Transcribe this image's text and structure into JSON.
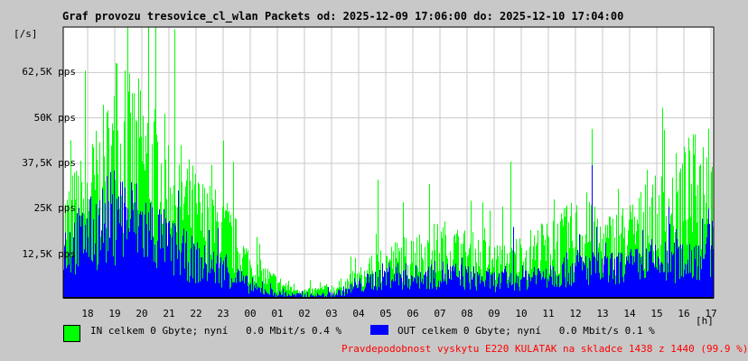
{
  "chart_data": {
    "type": "area",
    "title": "Graf provozu tresovice_cl_wlan Packets od: 2025-12-09 17:06:00 do: 2025-12-10 17:04:00",
    "ylabel": "[/s]",
    "xlabel": "[h]",
    "ylim": [
      0,
      75000
    ],
    "yticks": [
      {
        "v": 12500,
        "label": "12,5K pps"
      },
      {
        "v": 25000,
        "label": "25K pps"
      },
      {
        "v": 37500,
        "label": "37,5K pps"
      },
      {
        "v": 50000,
        "label": "50K pps"
      },
      {
        "v": 62500,
        "label": "62,5K pps"
      }
    ],
    "xticks": [
      "18",
      "19",
      "20",
      "21",
      "22",
      "23",
      "00",
      "01",
      "02",
      "03",
      "04",
      "05",
      "06",
      "07",
      "08",
      "09",
      "10",
      "11",
      "12",
      "13",
      "14",
      "15",
      "16",
      "17"
    ],
    "grid": true,
    "x_hours_from_start": [
      0,
      1,
      2,
      3,
      4,
      5,
      6,
      7,
      8,
      9,
      10,
      11,
      12,
      13,
      14,
      15,
      16,
      17,
      18,
      19,
      20,
      21,
      22,
      23,
      24
    ],
    "series": [
      {
        "name": "IN",
        "color": "#00ff00",
        "values": [
          20000,
          28000,
          40000,
          38000,
          30000,
          22000,
          18000,
          8000,
          4000,
          2000,
          3000,
          6000,
          10000,
          12000,
          14000,
          12000,
          10000,
          12000,
          14000,
          18000,
          15000,
          18000,
          22000,
          28000,
          32000
        ],
        "spikes": [
          {
            "h": 1.95,
            "v": 65000
          },
          {
            "h": 11.6,
            "v": 33000
          },
          {
            "h": 16.5,
            "v": 38000
          },
          {
            "h": 19.5,
            "v": 47000
          },
          {
            "h": 23.8,
            "v": 47000
          }
        ]
      },
      {
        "name": "OUT",
        "color": "#0000ff",
        "values": [
          14000,
          18000,
          24000,
          20000,
          14000,
          10000,
          8000,
          3000,
          1500,
          1000,
          1500,
          4000,
          7000,
          6000,
          7000,
          6000,
          5000,
          6000,
          7000,
          9000,
          8000,
          9000,
          10000,
          11000,
          14000
        ],
        "spikes": [
          {
            "h": 1.8,
            "v": 29000
          },
          {
            "h": 16.6,
            "v": 20000
          },
          {
            "h": 19.5,
            "v": 37000
          },
          {
            "h": 23.8,
            "v": 25000
          }
        ]
      }
    ]
  },
  "legend": {
    "in": "IN celkem 0 Gbyte; nyní   0.0 Mbit/s 0.4 %",
    "out": "OUT celkem 0 Gbyte; nyní   0.0 Mbit/s 0.1 %",
    "note": "Pravdepodobnost vyskytu E220 KULATAK na skladce 1438 z 1440 (99.9 %)"
  }
}
